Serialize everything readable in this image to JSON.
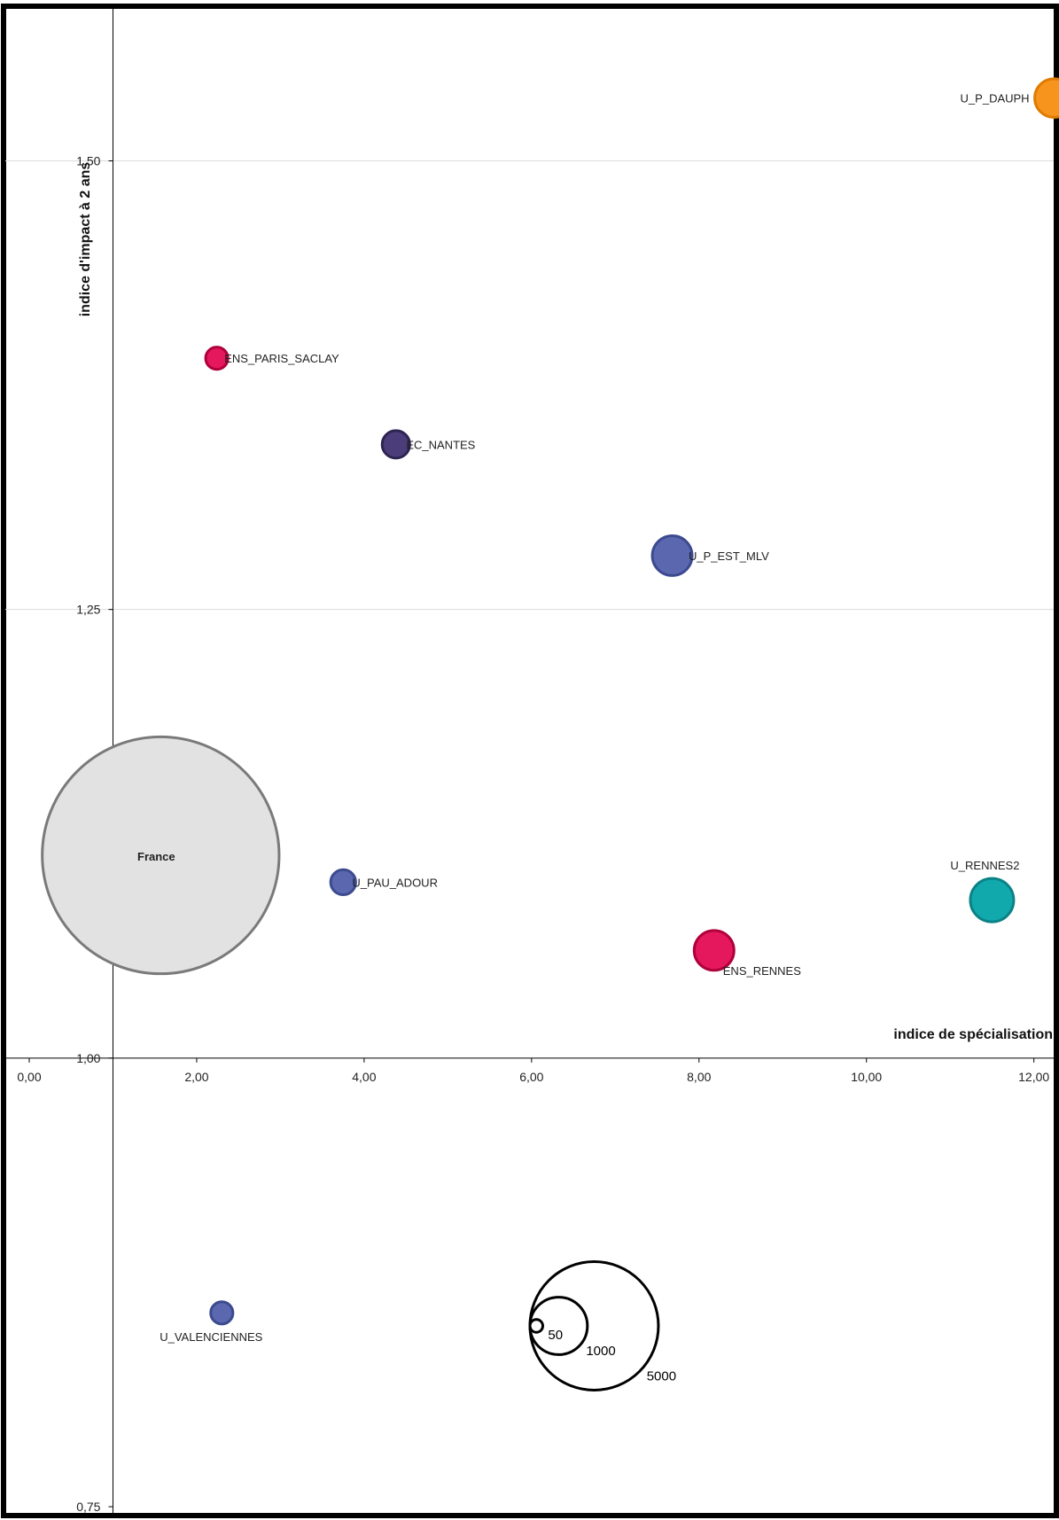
{
  "chart_data": {
    "type": "bubble",
    "xlabel": "indice de spécialisation",
    "ylabel": "indice d'impact à 2 ans",
    "xlim": [
      0,
      12.3
    ],
    "ylim": [
      0.75,
      1.56
    ],
    "x_ticks": [
      0,
      2,
      4,
      6,
      8,
      10,
      12
    ],
    "x_tick_labels": [
      "0,00",
      "2,00",
      "4,00",
      "6,00",
      "8,00",
      "10,00",
      "12,00"
    ],
    "y_ticks": [
      0.75,
      1.0,
      1.25,
      1.5
    ],
    "y_tick_labels": [
      "0,75",
      "1,00",
      "1,25",
      "1,50"
    ],
    "y_gridlines": true,
    "axes_cross_at": {
      "x": 1.0,
      "y": 1.0
    },
    "points": [
      {
        "label": "U_P_DAUPH",
        "x": 12.24,
        "y": 1.535,
        "size": 450,
        "color": "#f7941d",
        "stroke": "#e07b00",
        "label_pos": "left"
      },
      {
        "label": "ENS_PARIS_SACLAY",
        "x": 2.24,
        "y": 1.39,
        "size": 150,
        "color": "#e5185d",
        "stroke": "#b0003a",
        "label_pos": "right"
      },
      {
        "label": "EC_NANTES",
        "x": 4.38,
        "y": 1.342,
        "size": 230,
        "color": "#4b3d7a",
        "stroke": "#2e2452",
        "label_pos": "right"
      },
      {
        "label": "U_P_EST_MLV",
        "x": 7.68,
        "y": 1.28,
        "size": 480,
        "color": "#5b68b0",
        "stroke": "#3c4a8f",
        "label_pos": "right"
      },
      {
        "label": "France",
        "x": 1.57,
        "y": 1.113,
        "size": 17000,
        "color": "#e2e2e2",
        "stroke": "#7a7a7a",
        "label_pos": "center"
      },
      {
        "label": "U_PAU_ADOUR",
        "x": 3.75,
        "y": 1.098,
        "size": 190,
        "color": "#5b68b0",
        "stroke": "#3c4a8f",
        "label_pos": "right"
      },
      {
        "label": "U_RENNES2",
        "x": 11.5,
        "y": 1.088,
        "size": 570,
        "color": "#12a9ad",
        "stroke": "#0a8286",
        "label_pos": "above"
      },
      {
        "label": "ENS_RENNES",
        "x": 8.18,
        "y": 1.06,
        "size": 480,
        "color": "#e5185d",
        "stroke": "#b0003a",
        "label_pos": "below-right"
      },
      {
        "label": "U_VALENCIENNES",
        "x": 2.3,
        "y": 0.858,
        "size": 150,
        "color": "#5b68b0",
        "stroke": "#3c4a8f",
        "label_pos": "below"
      }
    ],
    "size_legend": [
      {
        "value": 50,
        "label": "50"
      },
      {
        "value": 1000,
        "label": "1000"
      },
      {
        "value": 5000,
        "label": "5000"
      }
    ]
  }
}
